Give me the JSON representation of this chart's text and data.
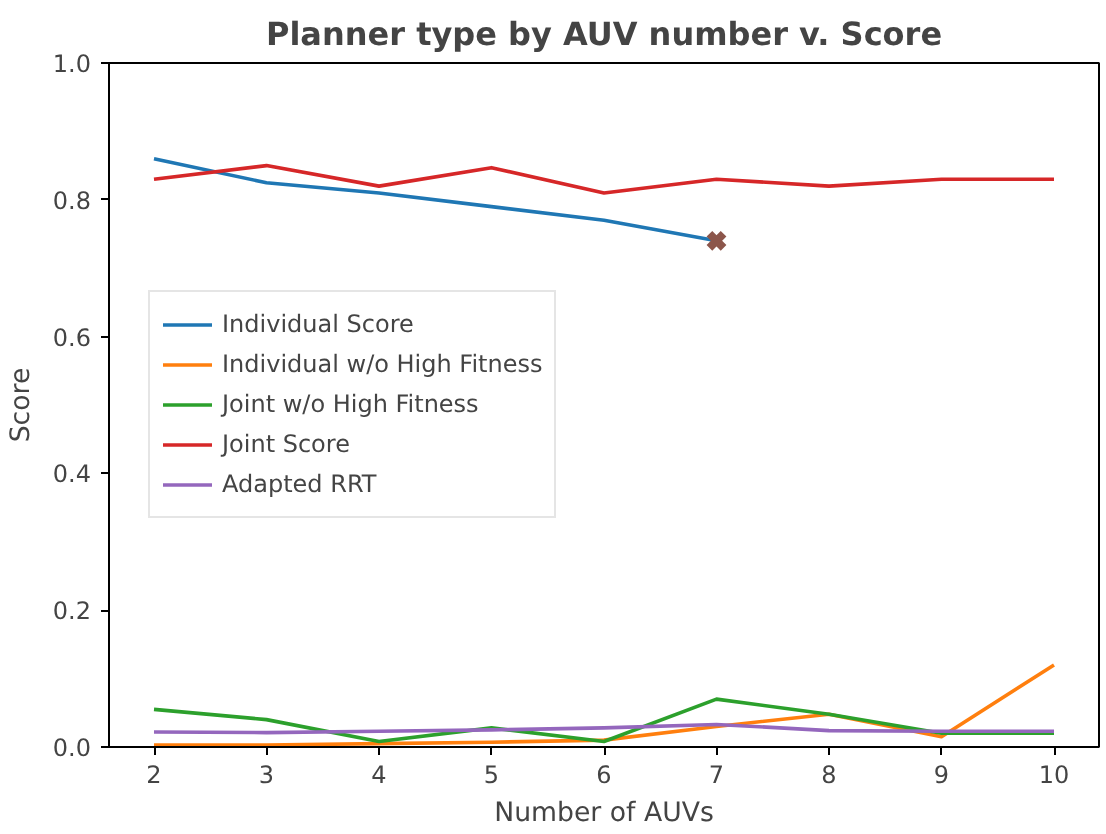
{
  "chart_data": {
    "type": "line",
    "title": "Planner type by AUV number v. Score",
    "xlabel": "Number of AUVs",
    "ylabel": "Score",
    "x": [
      2,
      3,
      4,
      5,
      6,
      7,
      8,
      9,
      10
    ],
    "xlim": [
      1.6,
      10.4
    ],
    "xticks": [
      2,
      3,
      4,
      5,
      6,
      7,
      8,
      9,
      10
    ],
    "ylim": [
      0.0,
      1.0
    ],
    "yticks": [
      {
        "value": 0,
        "label": "0.0"
      },
      0.2,
      0.4,
      0.6,
      0.8,
      {
        "value": 1,
        "label": "1.0"
      }
    ],
    "grid": false,
    "legend": "left",
    "line_style": "solid",
    "series": [
      {
        "name": "Individual Score",
        "color": "#1f77b4",
        "x": [
          2,
          3,
          4,
          5,
          6,
          7
        ],
        "values": [
          0.86,
          0.825,
          0.81,
          0.79,
          0.77,
          0.74
        ]
      },
      {
        "name": "Individual w/o High Fitness",
        "color": "#ff7f0e",
        "values": [
          0.003,
          0.003,
          0.005,
          0.007,
          0.01,
          0.03,
          0.048,
          0.015,
          0.12
        ]
      },
      {
        "name": "Joint w/o High Fitness",
        "color": "#2ca02c",
        "values": [
          0.055,
          0.04,
          0.008,
          0.028,
          0.008,
          0.07,
          0.048,
          0.02,
          0.02
        ]
      },
      {
        "name": "Joint Score",
        "color": "#d62728",
        "values": [
          0.83,
          0.85,
          0.82,
          0.847,
          0.81,
          0.83,
          0.82,
          0.83,
          0.83
        ]
      },
      {
        "name": "Adapted RRT",
        "color": "#9467bd",
        "values": [
          0.022,
          0.021,
          0.023,
          0.025,
          0.028,
          0.033,
          0.024,
          0.023,
          0.023
        ]
      },
      {
        "type": "scatter",
        "marker": "cross",
        "color": "#8c564b",
        "x": [
          7
        ],
        "values": [
          0.74
        ]
      }
    ]
  }
}
